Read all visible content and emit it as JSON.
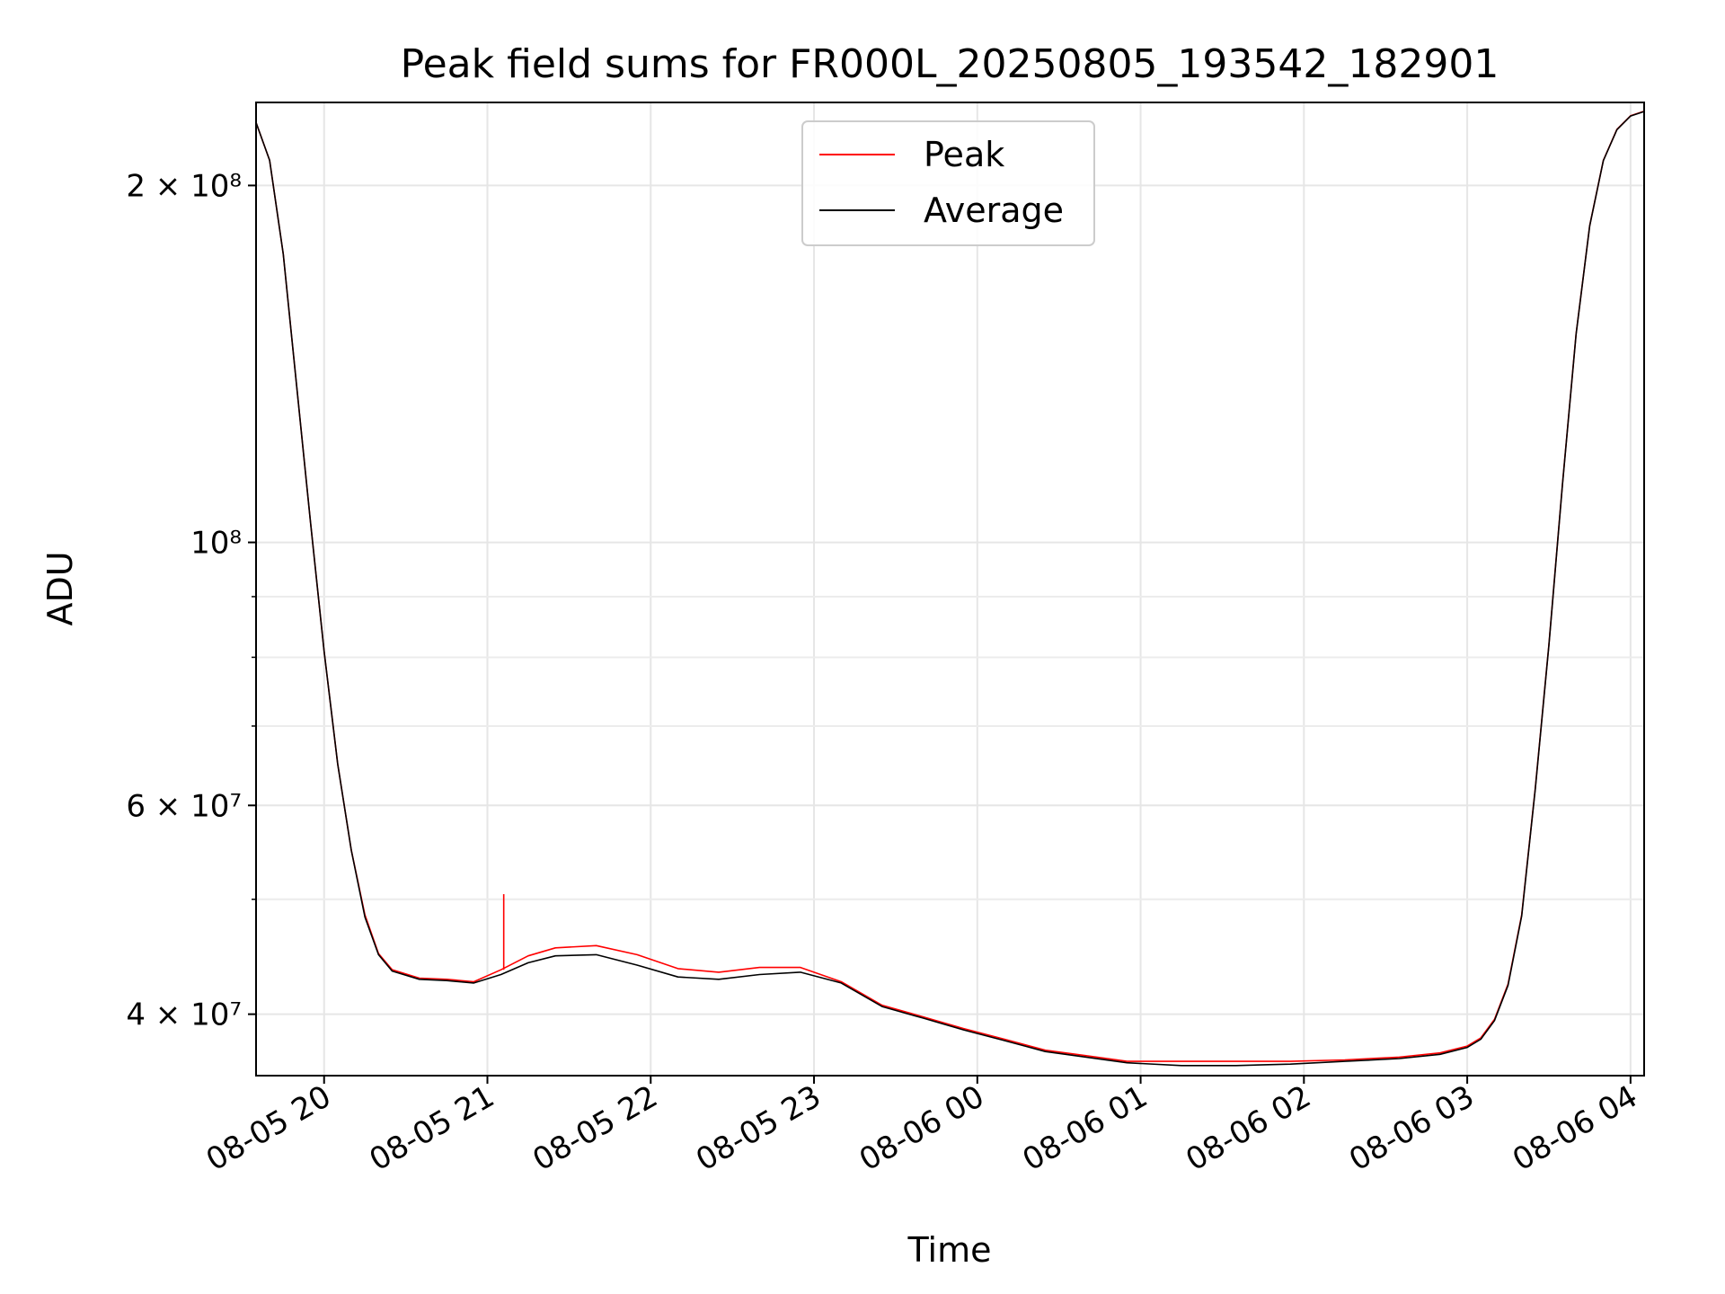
{
  "chart_data": {
    "type": "line",
    "title": "Peak field sums for FR000L_20250805_193542_182901",
    "xlabel": "Time",
    "ylabel": "ADU",
    "y_scale": "log",
    "xlim": [
      "2025-08-05 19:35",
      "2025-08-06 04:05"
    ],
    "ylim": [
      35500000,
      235000000
    ],
    "x_ticks": [
      "08-05 20",
      "08-05 21",
      "08-05 22",
      "08-05 23",
      "08-06 00",
      "08-06 01",
      "08-06 02",
      "08-06 03",
      "08-06 04"
    ],
    "x_tick_values": [
      "2025-08-05 20:00",
      "2025-08-05 21:00",
      "2025-08-05 22:00",
      "2025-08-05 23:00",
      "2025-08-06 00:00",
      "2025-08-06 01:00",
      "2025-08-06 02:00",
      "2025-08-06 03:00",
      "2025-08-06 04:00"
    ],
    "y_ticks": [
      {
        "value": 40000000,
        "label": "4 × 10⁷"
      },
      {
        "value": 60000000,
        "label": "6 × 10⁷"
      },
      {
        "value": 100000000,
        "label": "10⁸"
      },
      {
        "value": 200000000,
        "label": "2 × 10⁸"
      }
    ],
    "y_minor_ticks": [
      50000000,
      70000000,
      80000000,
      90000000
    ],
    "grid": true,
    "legend": {
      "placement": "upper center",
      "entries": [
        "Peak",
        "Average"
      ]
    },
    "series": [
      {
        "name": "Peak",
        "color": "#ff0000",
        "x": [
          "2025-08-05 19:35",
          "2025-08-05 19:40",
          "2025-08-05 19:45",
          "2025-08-05 19:50",
          "2025-08-05 19:55",
          "2025-08-05 20:00",
          "2025-08-05 20:05",
          "2025-08-05 20:10",
          "2025-08-05 20:15",
          "2025-08-05 20:20",
          "2025-08-05 20:25",
          "2025-08-05 20:35",
          "2025-08-05 20:45",
          "2025-08-05 20:55",
          "2025-08-05 21:05",
          "2025-08-05 21:15",
          "2025-08-05 21:25",
          "2025-08-05 21:40",
          "2025-08-05 21:55",
          "2025-08-05 22:10",
          "2025-08-05 22:25",
          "2025-08-05 22:40",
          "2025-08-05 22:55",
          "2025-08-05 23:10",
          "2025-08-05 23:25",
          "2025-08-05 23:40",
          "2025-08-05 23:55",
          "2025-08-06 00:10",
          "2025-08-06 00:25",
          "2025-08-06 00:40",
          "2025-08-06 00:55",
          "2025-08-06 01:15",
          "2025-08-06 01:35",
          "2025-08-06 01:55",
          "2025-08-06 02:15",
          "2025-08-06 02:35",
          "2025-08-06 02:50",
          "2025-08-06 03:00",
          "2025-08-06 03:05",
          "2025-08-06 03:10",
          "2025-08-06 03:15",
          "2025-08-06 03:20",
          "2025-08-06 03:25",
          "2025-08-06 03:30",
          "2025-08-06 03:35",
          "2025-08-06 03:40",
          "2025-08-06 03:45",
          "2025-08-06 03:50",
          "2025-08-06 03:55",
          "2025-08-06 04:00",
          "2025-08-06 04:05"
        ],
        "values": [
          226000000,
          210000000,
          175000000,
          135000000,
          104000000,
          81000000,
          65000000,
          55000000,
          48500000,
          45000000,
          43600000,
          42900000,
          42800000,
          42600000,
          43600000,
          44800000,
          45500000,
          45700000,
          44900000,
          43700000,
          43400000,
          43800000,
          43800000,
          42600000,
          40700000,
          39800000,
          38900000,
          38100000,
          37300000,
          36900000,
          36500000,
          36500000,
          36500000,
          36500000,
          36600000,
          36800000,
          37100000,
          37600000,
          38200000,
          39600000,
          42400000,
          48500000,
          62000000,
          82000000,
          112000000,
          150000000,
          185000000,
          210000000,
          223000000,
          229000000,
          231000000
        ],
        "spikes": [
          {
            "x": "2025-08-05 21:06",
            "value": 50500000
          }
        ]
      },
      {
        "name": "Average",
        "color": "#000000",
        "x": [
          "2025-08-05 19:35",
          "2025-08-05 19:40",
          "2025-08-05 19:45",
          "2025-08-05 19:50",
          "2025-08-05 19:55",
          "2025-08-05 20:00",
          "2025-08-05 20:05",
          "2025-08-05 20:10",
          "2025-08-05 20:15",
          "2025-08-05 20:20",
          "2025-08-05 20:25",
          "2025-08-05 20:35",
          "2025-08-05 20:45",
          "2025-08-05 20:55",
          "2025-08-05 21:05",
          "2025-08-05 21:15",
          "2025-08-05 21:25",
          "2025-08-05 21:40",
          "2025-08-05 21:55",
          "2025-08-05 22:10",
          "2025-08-05 22:25",
          "2025-08-05 22:40",
          "2025-08-05 22:55",
          "2025-08-05 23:10",
          "2025-08-05 23:25",
          "2025-08-05 23:40",
          "2025-08-05 23:55",
          "2025-08-06 00:10",
          "2025-08-06 00:25",
          "2025-08-06 00:40",
          "2025-08-06 00:55",
          "2025-08-06 01:15",
          "2025-08-06 01:35",
          "2025-08-06 01:55",
          "2025-08-06 02:15",
          "2025-08-06 02:35",
          "2025-08-06 02:50",
          "2025-08-06 03:00",
          "2025-08-06 03:05",
          "2025-08-06 03:10",
          "2025-08-06 03:15",
          "2025-08-06 03:20",
          "2025-08-06 03:25",
          "2025-08-06 03:30",
          "2025-08-06 03:35",
          "2025-08-06 03:40",
          "2025-08-06 03:45",
          "2025-08-06 03:50",
          "2025-08-06 03:55",
          "2025-08-06 04:00",
          "2025-08-06 04:05"
        ],
        "values": [
          226000000,
          210000000,
          175000000,
          135000000,
          104000000,
          81000000,
          65000000,
          55000000,
          48300000,
          44900000,
          43500000,
          42800000,
          42700000,
          42500000,
          43200000,
          44200000,
          44800000,
          44900000,
          44000000,
          43000000,
          42800000,
          43200000,
          43400000,
          42500000,
          40600000,
          39700000,
          38800000,
          38000000,
          37200000,
          36800000,
          36400000,
          36200000,
          36200000,
          36300000,
          36500000,
          36700000,
          37000000,
          37500000,
          38100000,
          39500000,
          42300000,
          48400000,
          61900000,
          81900000,
          111900000,
          149900000,
          184900000,
          209900000,
          222900000,
          228900000,
          230900000
        ]
      }
    ]
  }
}
